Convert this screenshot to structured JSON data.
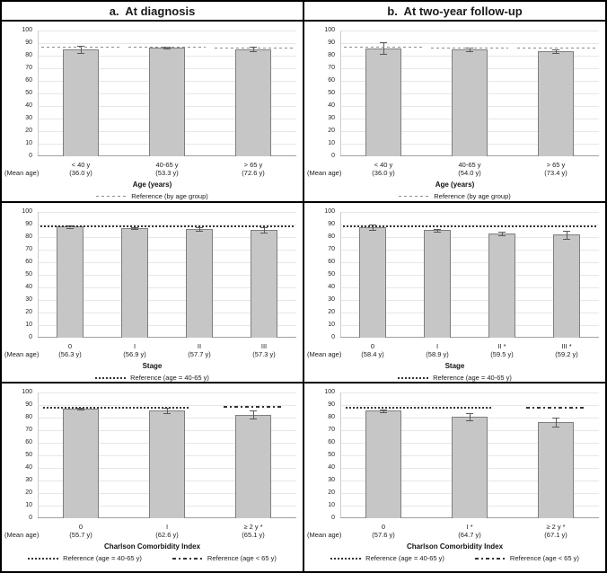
{
  "figure": {
    "columns": [
      {
        "title": "a.  At diagnosis"
      },
      {
        "title": "b.  At two-year follow-up"
      }
    ]
  },
  "colors": {
    "bar_fill": "#c6c6c6",
    "bar_border": "#7f7f7f",
    "error_bar": "#595959",
    "ref_dark": "#333333",
    "ref_gray": "#8c8c8c",
    "gridline": "#e7e7e7",
    "axis_line": "#a0a0a0",
    "y_axis_line": "#cccccc"
  },
  "chart_data": [
    {
      "type": "bar",
      "panel": "a-age",
      "column_title": "a.  At diagnosis",
      "categories": [
        "< 40 y",
        "40-65 y",
        "> 65 y"
      ],
      "mean_ages": [
        "(36.0 y)",
        "(53.3 y)",
        "(72.6 y)"
      ],
      "values": [
        85,
        86.5,
        85.3
      ],
      "errors": [
        3,
        0.8,
        1.5
      ],
      "ylim": [
        0,
        100
      ],
      "ytick_step": 10,
      "mean_age_label": "(Mean age)",
      "xlabel": "Age (years)",
      "references": [
        {
          "style": "dashed",
          "value": 86.5,
          "x0": 0.015,
          "x1": 0.315
        },
        {
          "style": "dashed",
          "value": 86.5,
          "x0": 0.352,
          "x1": 0.648
        },
        {
          "style": "dashed",
          "value": 86.2,
          "x0": 0.685,
          "x1": 0.985
        }
      ],
      "legend": [
        {
          "style": "dashed",
          "label": "Reference (by age group)"
        }
      ]
    },
    {
      "type": "bar",
      "panel": "b-age",
      "column_title": "b.  At two-year follow-up",
      "categories": [
        "< 40 y",
        "40-65 y",
        "> 65 y"
      ],
      "mean_ages": [
        "(36.0 y)",
        "(54.0 y)",
        "(73.4 y)"
      ],
      "values": [
        86,
        85,
        83.8
      ],
      "errors": [
        4.5,
        1.2,
        1.5
      ],
      "ylim": [
        0,
        100
      ],
      "ytick_step": 10,
      "mean_age_label": "(Mean age)",
      "xlabel": "Age (years)",
      "references": [
        {
          "style": "dashed",
          "value": 86.5,
          "x0": 0.015,
          "x1": 0.315
        },
        {
          "style": "dashed",
          "value": 86.3,
          "x0": 0.352,
          "x1": 0.648
        },
        {
          "style": "dashed",
          "value": 86.2,
          "x0": 0.685,
          "x1": 0.985
        }
      ],
      "legend": [
        {
          "style": "dashed",
          "label": "Reference (by age group)"
        }
      ]
    },
    {
      "type": "bar",
      "panel": "a-stage",
      "column_title": "a.  At diagnosis",
      "categories": [
        "0",
        "I",
        "II",
        "III"
      ],
      "mean_ages": [
        "(56.3 y)",
        "(56.9 y)",
        "(57.7 y)",
        "(57.3 y)"
      ],
      "values": [
        88.5,
        87,
        86.5,
        86
      ],
      "errors": [
        1,
        0.8,
        1.2,
        2.2
      ],
      "ylim": [
        0,
        100
      ],
      "ytick_step": 10,
      "mean_age_label": "(Mean age)",
      "xlabel": "Stage",
      "references": [
        {
          "style": "dotted",
          "value": 88.5,
          "x0": 0.01,
          "x1": 0.99
        }
      ],
      "legend": [
        {
          "style": "dotted",
          "label": "Reference (age = 40-65 y)"
        }
      ]
    },
    {
      "type": "bar",
      "panel": "b-stage",
      "column_title": "b.  At two-year follow-up",
      "categories": [
        "0",
        "I",
        "II *",
        "III *"
      ],
      "mean_ages": [
        "(58.4 y)",
        "(58.9 y)",
        "(59.5 y)",
        "(59.2 y)"
      ],
      "values": [
        88,
        85.5,
        83,
        81.8
      ],
      "errors": [
        2,
        1,
        1.3,
        3.5
      ],
      "ylim": [
        0,
        100
      ],
      "ytick_step": 10,
      "mean_age_label": "(Mean age)",
      "xlabel": "Stage",
      "references": [
        {
          "style": "dotted",
          "value": 88.5,
          "x0": 0.01,
          "x1": 0.99
        }
      ],
      "legend": [
        {
          "style": "dotted",
          "label": "Reference (age = 40-65 y)"
        }
      ]
    },
    {
      "type": "bar",
      "panel": "a-cci",
      "column_title": "a.  At diagnosis",
      "categories": [
        "0",
        "I",
        "≥ 2 y *"
      ],
      "mean_ages": [
        "(55.7 y)",
        "(62.6 y)",
        "(65.1 y)"
      ],
      "values": [
        87.3,
        85.8,
        82.5
      ],
      "errors": [
        0.7,
        2,
        3
      ],
      "ylim": [
        0,
        100
      ],
      "ytick_step": 10,
      "mean_age_label": "(Mean age)",
      "xlabel": "Charlson Comorbidity Index",
      "references": [
        {
          "style": "dotted",
          "value": 88,
          "x0": 0.02,
          "x1": 0.59
        },
        {
          "style": "dashdot",
          "value": 88.3,
          "x0": 0.72,
          "x1": 0.94
        }
      ],
      "legend": [
        {
          "style": "dotted",
          "label": "Reference (age = 40-65 y)"
        },
        {
          "style": "dashdot",
          "label": "Reference (age < 65 y)"
        }
      ]
    },
    {
      "type": "bar",
      "panel": "b-cci",
      "column_title": "b.  At two-year follow-up",
      "categories": [
        "0",
        "I *",
        "≥ 2 y *"
      ],
      "mean_ages": [
        "(57.6 y)",
        "(64.7 y)",
        "(67.1 y)"
      ],
      "values": [
        85.5,
        80.8,
        76.5
      ],
      "errors": [
        1,
        2.8,
        3.5
      ],
      "ylim": [
        0,
        100
      ],
      "ytick_step": 10,
      "mean_age_label": "(Mean age)",
      "xlabel": "Charlson Comorbidity Index",
      "references": [
        {
          "style": "dotted",
          "value": 88,
          "x0": 0.02,
          "x1": 0.59
        },
        {
          "style": "dashdot",
          "value": 87.8,
          "x0": 0.72,
          "x1": 0.94
        }
      ],
      "legend": [
        {
          "style": "dotted",
          "label": "Reference (age = 40-65 y)"
        },
        {
          "style": "dashdot",
          "label": "Reference (age < 65 y)"
        }
      ]
    }
  ]
}
